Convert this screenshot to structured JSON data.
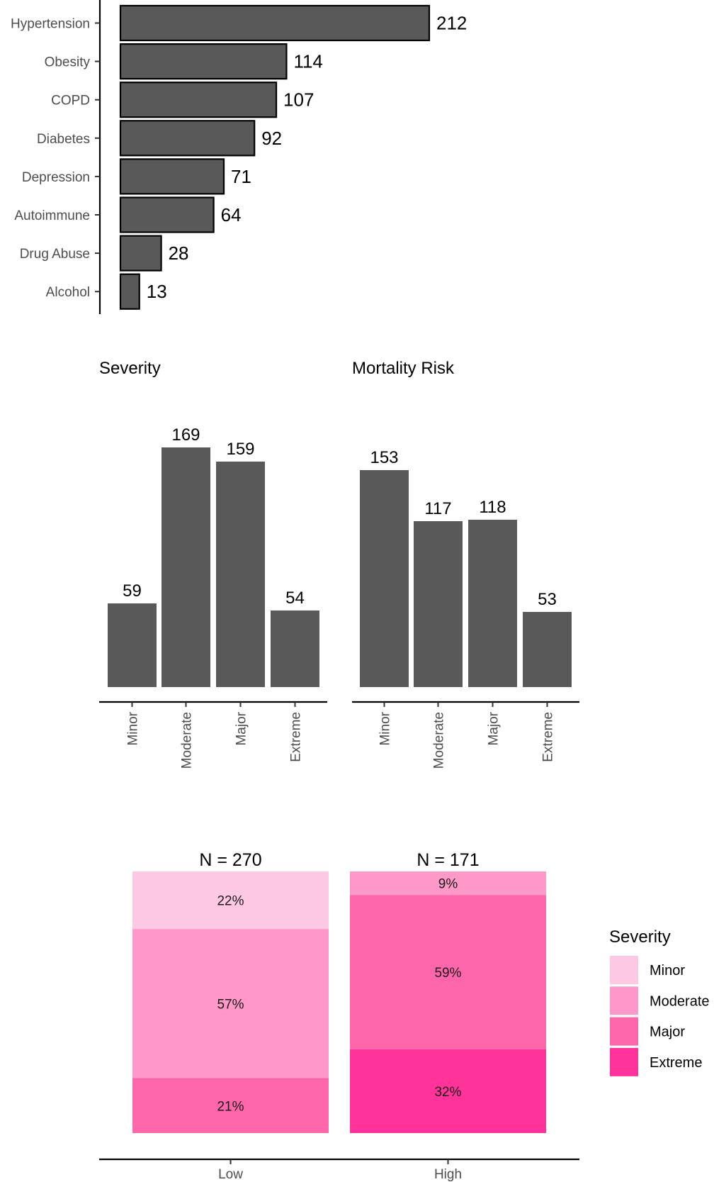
{
  "chart_data": [
    {
      "type": "bar",
      "orientation": "horizontal",
      "title": "",
      "xlabel": "",
      "ylabel": "",
      "categories": [
        "Hypertension",
        "Obesity",
        "COPD",
        "Diabetes",
        "Depression",
        "Autoimmune",
        "Drug Abuse",
        "Alcohol"
      ],
      "values": [
        212,
        114,
        107,
        92,
        71,
        64,
        28,
        13
      ],
      "data_labels": [
        "212",
        "114",
        "107",
        "92",
        "71",
        "64",
        "28",
        "13"
      ],
      "bar_color": "#595959",
      "bar_border_color": "#000000",
      "grid": false
    },
    {
      "type": "bar",
      "title": "Severity",
      "xlabel": "",
      "ylabel": "",
      "categories": [
        "Minor",
        "Moderate",
        "Major",
        "Extreme"
      ],
      "values": [
        59,
        169,
        159,
        54
      ],
      "data_labels": [
        "59",
        "169",
        "159",
        "54"
      ],
      "bar_color": "#595959",
      "grid": false
    },
    {
      "type": "bar",
      "title": "Mortality Risk",
      "xlabel": "",
      "ylabel": "",
      "categories": [
        "Minor",
        "Moderate",
        "Major",
        "Extreme"
      ],
      "values": [
        153,
        117,
        118,
        53
      ],
      "data_labels": [
        "153",
        "117",
        "118",
        "53"
      ],
      "bar_color": "#595959",
      "grid": false
    },
    {
      "type": "bar",
      "stacked": true,
      "percent": true,
      "title": "",
      "xlabel": "",
      "ylabel": "",
      "categories": [
        "Low",
        "High"
      ],
      "column_labels": [
        "N = 270",
        "N = 171"
      ],
      "series": [
        {
          "name": "Minor",
          "color": "#fdc8e3",
          "values": [
            22,
            0
          ],
          "labels": [
            "22%",
            ""
          ]
        },
        {
          "name": "Moderate",
          "color": "#fe98c8",
          "values": [
            57,
            9
          ],
          "labels": [
            "57%",
            "9%"
          ]
        },
        {
          "name": "Major",
          "color": "#fe66ac",
          "values": [
            21,
            59
          ],
          "labels": [
            "21%",
            "59%"
          ]
        },
        {
          "name": "Extreme",
          "color": "#ff3399",
          "values": [
            0,
            32
          ],
          "labels": [
            "",
            "32%"
          ]
        }
      ],
      "legend": {
        "title": "Severity",
        "position": "right",
        "entries": [
          "Minor",
          "Moderate",
          "Major",
          "Extreme"
        ]
      },
      "grid": false
    }
  ]
}
